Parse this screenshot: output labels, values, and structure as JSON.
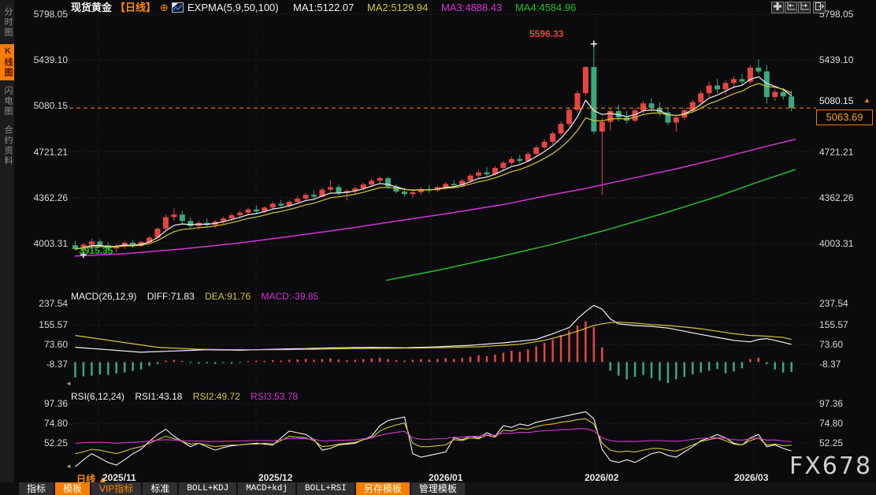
{
  "header": {
    "symbol": "现货黄金",
    "period": "【日线】",
    "plus_icon": "⊕",
    "indicator_label": "EXPMA(5,9,50,100)",
    "ma1": "MA1:5122.07",
    "ma2": "MA2:5129.94",
    "ma3": "MA3:4888.43",
    "ma4": "MA4:4584.96"
  },
  "top_icons": [
    {
      "name": "move-icon"
    },
    {
      "name": "pan-left-icon"
    },
    {
      "name": "pan-right-icon"
    },
    {
      "name": "dock-panel-icon"
    }
  ],
  "sidebar": {
    "items": [
      {
        "label": "分时图",
        "active": false
      },
      {
        "label": "K线图",
        "active": true
      },
      {
        "label": "闪电图",
        "active": false
      },
      {
        "label": "合约资料",
        "active": false
      }
    ]
  },
  "axes": {
    "price": [
      "5798.05",
      "5439.10",
      "5080.15",
      "4721.21",
      "4362.26",
      "4003.31"
    ],
    "macd": [
      "237.54",
      "155.57",
      "73.60",
      "-8.37"
    ],
    "rsi": [
      "97.36",
      "74.80",
      "52.25"
    ]
  },
  "markers": {
    "high_label": "5596.33",
    "low_label": "3915.35",
    "axis_price_label": "5080.15",
    "axis_price_arrow": "▲",
    "last_price": "5063.69"
  },
  "macd_panel": {
    "title": "MACD(26,12,9)",
    "diff_label": "DIFF:71.83",
    "dea_label": "DEA:91.76",
    "macd_label": "MACD:-39.85"
  },
  "rsi_panel": {
    "title": "RSI(6,12,24)",
    "rsi1_label": "RSI1:43.18",
    "rsi2_label": "RSI2:49.72",
    "rsi3_label": "RSI3:53.78"
  },
  "xaxis": {
    "period_label": "日线 ▲",
    "dates": [
      "2025/11",
      "2025/12",
      "2026/01",
      "2026/02",
      "2026/03"
    ]
  },
  "bottom_toolbar": {
    "buttons": [
      {
        "label": "指标",
        "style": "plain"
      },
      {
        "label": "模板",
        "style": "active"
      },
      {
        "label": "VIP指标",
        "style": "vip"
      },
      {
        "label": "标准",
        "style": "plain"
      },
      {
        "label": "BOLL+KDJ",
        "style": "mono"
      },
      {
        "label": "MACD+kdj",
        "style": "mono"
      },
      {
        "label": "BOLL+RSI",
        "style": "mono"
      },
      {
        "label": "另存模板",
        "style": "active"
      },
      {
        "label": "管理模板",
        "style": "plain"
      }
    ]
  },
  "watermark": "FX678",
  "colors": {
    "up": "#e64540",
    "down": "#3aa87c",
    "ma1": "#f2f2f2",
    "ma2": "#d3c72f",
    "ma3": "#d633d6",
    "ma4": "#27bd27",
    "accent": "#f57d00",
    "orange_line": "#ff8a00",
    "grid": "#363636",
    "vgrid": "#2d2d2d",
    "axis_text": "#d8d8d8"
  },
  "chart_data": {
    "type": "candlestick",
    "title": "现货黄金 日线 (spot gold daily)",
    "legend": [
      "MA1(白)",
      "MA2(黄)",
      "MA3(紫)",
      "MA4(绿)"
    ],
    "price_axis_ticks": [
      5798.05,
      5439.1,
      5080.15,
      4721.21,
      4362.26,
      4003.31
    ],
    "high_point": 5596.33,
    "low_point": 3915.35,
    "last": 5063.69,
    "candles": [
      [
        3990,
        4025,
        3950,
        3960
      ],
      [
        3955,
        4010,
        3915.35,
        3995
      ],
      [
        3995,
        4040,
        3970,
        4020
      ],
      [
        4020,
        4035,
        3975,
        3990
      ],
      [
        3990,
        4015,
        3950,
        3965
      ],
      [
        3965,
        4000,
        3935,
        3985
      ],
      [
        3985,
        4020,
        3960,
        4010
      ],
      [
        4010,
        4030,
        3970,
        3985
      ],
      [
        3985,
        4025,
        3975,
        4015
      ],
      [
        4015,
        4060,
        4000,
        4050
      ],
      [
        4050,
        4130,
        4040,
        4120
      ],
      [
        4120,
        4230,
        4110,
        4210
      ],
      [
        4210,
        4280,
        4180,
        4230
      ],
      [
        4230,
        4260,
        4160,
        4180
      ],
      [
        4180,
        4210,
        4120,
        4140
      ],
      [
        4140,
        4180,
        4110,
        4165
      ],
      [
        4165,
        4200,
        4130,
        4150
      ],
      [
        4150,
        4190,
        4125,
        4175
      ],
      [
        4175,
        4215,
        4155,
        4200
      ],
      [
        4200,
        4240,
        4180,
        4225
      ],
      [
        4225,
        4260,
        4200,
        4245
      ],
      [
        4245,
        4285,
        4225,
        4270
      ],
      [
        4270,
        4300,
        4235,
        4255
      ],
      [
        4255,
        4295,
        4240,
        4285
      ],
      [
        4285,
        4330,
        4265,
        4315
      ],
      [
        4315,
        4345,
        4280,
        4300
      ],
      [
        4300,
        4340,
        4285,
        4330
      ],
      [
        4330,
        4370,
        4310,
        4355
      ],
      [
        4355,
        4400,
        4335,
        4385
      ],
      [
        4385,
        4420,
        4350,
        4370
      ],
      [
        4370,
        4440,
        4360,
        4425
      ],
      [
        4425,
        4500,
        4410,
        4445
      ],
      [
        4445,
        4465,
        4380,
        4400
      ],
      [
        4400,
        4430,
        4340,
        4415
      ],
      [
        4415,
        4450,
        4390,
        4435
      ],
      [
        4435,
        4480,
        4420,
        4465
      ],
      [
        4465,
        4510,
        4445,
        4495
      ],
      [
        4495,
        4530,
        4470,
        4515
      ],
      [
        4515,
        4525,
        4430,
        4450
      ],
      [
        4450,
        4470,
        4395,
        4410
      ],
      [
        4410,
        4440,
        4370,
        4390
      ],
      [
        4390,
        4420,
        4360,
        4405
      ],
      [
        4405,
        4445,
        4385,
        4430
      ],
      [
        4430,
        4460,
        4400,
        4420
      ],
      [
        4420,
        4455,
        4405,
        4445
      ],
      [
        4445,
        4485,
        4425,
        4470
      ],
      [
        4470,
        4500,
        4440,
        4460
      ],
      [
        4460,
        4510,
        4445,
        4495
      ],
      [
        4495,
        4550,
        4480,
        4535
      ],
      [
        4535,
        4580,
        4510,
        4560
      ],
      [
        4560,
        4600,
        4530,
        4545
      ],
      [
        4545,
        4610,
        4535,
        4595
      ],
      [
        4595,
        4650,
        4575,
        4635
      ],
      [
        4635,
        4685,
        4615,
        4665
      ],
      [
        4665,
        4700,
        4630,
        4650
      ],
      [
        4650,
        4720,
        4640,
        4705
      ],
      [
        4705,
        4770,
        4690,
        4755
      ],
      [
        4755,
        4820,
        4735,
        4800
      ],
      [
        4800,
        4880,
        4780,
        4865
      ],
      [
        4865,
        4960,
        4845,
        4940
      ],
      [
        4940,
        5070,
        4920,
        5050
      ],
      [
        5050,
        5200,
        5030,
        5180
      ],
      [
        5180,
        5390,
        5160,
        5385
      ],
      [
        5385,
        5596.33,
        4860,
        4880
      ],
      [
        4880,
        4990,
        4385,
        4955
      ],
      [
        4955,
        5060,
        4890,
        5040
      ],
      [
        5040,
        5090,
        4960,
        4990
      ],
      [
        4990,
        5040,
        4940,
        4965
      ],
      [
        4965,
        5060,
        4950,
        5045
      ],
      [
        5045,
        5120,
        5020,
        5100
      ],
      [
        5100,
        5140,
        5040,
        5065
      ],
      [
        5065,
        5110,
        5000,
        5030
      ],
      [
        5030,
        5060,
        4930,
        4950
      ],
      [
        4950,
        5010,
        4880,
        4990
      ],
      [
        4990,
        5060,
        4970,
        5045
      ],
      [
        5045,
        5130,
        5030,
        5110
      ],
      [
        5110,
        5200,
        5090,
        5180
      ],
      [
        5180,
        5270,
        5150,
        5240
      ],
      [
        5240,
        5290,
        5180,
        5210
      ],
      [
        5210,
        5280,
        5170,
        5260
      ],
      [
        5260,
        5310,
        5220,
        5290
      ],
      [
        5290,
        5330,
        5240,
        5270
      ],
      [
        5270,
        5400,
        5250,
        5380
      ],
      [
        5380,
        5445,
        5330,
        5350
      ],
      [
        5350,
        5400,
        5100,
        5150
      ],
      [
        5150,
        5210,
        5120,
        5190
      ],
      [
        5190,
        5220,
        5130,
        5155
      ],
      [
        5155,
        5200,
        5040,
        5063.69
      ]
    ],
    "ma3_points": [
      [
        95,
        3905
      ],
      [
        160,
        3925
      ],
      [
        230,
        3960
      ],
      [
        300,
        4005
      ],
      [
        370,
        4060
      ],
      [
        440,
        4120
      ],
      [
        510,
        4185
      ],
      [
        570,
        4240
      ],
      [
        640,
        4310
      ],
      [
        700,
        4385
      ],
      [
        740,
        4430
      ],
      [
        800,
        4510
      ],
      [
        860,
        4590
      ],
      [
        920,
        4680
      ],
      [
        970,
        4760
      ],
      [
        1010,
        4820
      ]
    ],
    "ma4_points": [
      [
        490,
        3715
      ],
      [
        560,
        3800
      ],
      [
        630,
        3895
      ],
      [
        700,
        3995
      ],
      [
        770,
        4110
      ],
      [
        840,
        4235
      ],
      [
        910,
        4370
      ],
      [
        960,
        4480
      ],
      [
        1010,
        4583
      ]
    ],
    "macd": {
      "params": [
        26,
        12,
        9
      ],
      "diff": [
        60,
        57.5,
        55,
        52.5,
        50,
        47.5,
        45,
        42.5,
        40,
        41.3,
        42.5,
        43.8,
        45,
        46.3,
        47.5,
        48.8,
        50,
        49.5,
        49,
        48.5,
        48,
        49,
        50,
        51,
        52,
        52.8,
        53.5,
        54.3,
        55,
        55.8,
        56.5,
        57.3,
        58,
        58.5,
        59,
        59.5,
        60,
        59.5,
        59,
        58.5,
        58,
        59,
        60,
        61,
        62,
        63.5,
        65,
        66.5,
        68,
        70.5,
        73,
        75.5,
        78,
        81.5,
        85,
        88.5,
        92,
        103.5,
        115,
        127.5,
        140,
        175,
        205,
        230,
        215,
        175,
        155,
        151.5,
        148,
        146.5,
        145,
        141.5,
        138,
        131.5,
        125,
        118.5,
        112,
        106,
        100,
        94,
        88,
        85,
        82,
        92,
        95,
        88,
        80,
        71.83
      ],
      "dea": [
        108,
        103.2,
        98.4,
        93.6,
        88.8,
        84,
        79.2,
        74.4,
        69.6,
        64.8,
        60,
        58.4,
        56.8,
        55.2,
        53.6,
        52,
        51.6,
        51.2,
        50.8,
        50.4,
        50,
        50,
        50,
        50,
        50,
        50.4,
        50.8,
        51.2,
        51.6,
        52,
        52.6,
        53.2,
        53.8,
        54.4,
        55,
        55.2,
        55.4,
        55.6,
        55.8,
        56,
        56.4,
        56.8,
        57.2,
        57.6,
        58,
        58.8,
        59.6,
        60.4,
        61.2,
        62,
        64,
        66,
        68,
        70,
        72,
        77.3,
        82.7,
        88,
        96.5,
        105,
        115,
        125,
        136.5,
        148,
        155,
        160,
        162,
        160,
        158,
        155,
        152,
        150,
        148,
        145,
        142,
        138.5,
        135,
        130,
        125,
        120,
        115,
        111.5,
        108,
        106.5,
        105,
        102.5,
        100,
        91.76
      ],
      "hist": [
        -62,
        -58,
        -55,
        -50,
        -52,
        -46,
        -42,
        -36,
        -30,
        -15,
        -8,
        6,
        9,
        5,
        -4,
        -6,
        -5,
        -7,
        -4,
        -6,
        -3,
        4,
        6,
        5,
        8,
        6,
        9,
        11,
        13,
        9,
        12,
        15,
        10,
        7,
        9,
        12,
        15,
        18,
        12,
        8,
        6,
        9,
        12,
        10,
        13,
        16,
        13,
        17,
        22,
        28,
        24,
        30,
        38,
        46,
        42,
        52,
        64,
        78,
        92,
        110,
        128,
        148,
        165,
        142,
        60,
        -35,
        -55,
        -70,
        -60,
        -52,
        -65,
        -75,
        -85,
        -70,
        -60,
        -50,
        -42,
        -35,
        -28,
        -45,
        -38,
        -25,
        12,
        18,
        -8,
        -30,
        -42,
        -39.85
      ]
    },
    "rsi": {
      "params": [
        6,
        12,
        24
      ],
      "rsi1": [
        25,
        33,
        40,
        35,
        30,
        27,
        33,
        40,
        45,
        54,
        62,
        68,
        60,
        54,
        48,
        52,
        48,
        44,
        47,
        49,
        50,
        51,
        52,
        51,
        50,
        58,
        66,
        64,
        62,
        56,
        44,
        46,
        50,
        51,
        52,
        56,
        60,
        72,
        78,
        80,
        82,
        40,
        36,
        38,
        40,
        42,
        58,
        56,
        60,
        58,
        64,
        60,
        72,
        70,
        74,
        72,
        76,
        78,
        80,
        82,
        84,
        86,
        88,
        80,
        45,
        32,
        30,
        33,
        30,
        35,
        40,
        42,
        38,
        36,
        42,
        48,
        55,
        58,
        62,
        58,
        52,
        50,
        58,
        62,
        48,
        50,
        46,
        43.18
      ],
      "rsi2": [
        40,
        42,
        45,
        44,
        42,
        40,
        43,
        46,
        48,
        52,
        56,
        60,
        57,
        54,
        51,
        52,
        50,
        48,
        49,
        50,
        50,
        51,
        51,
        52,
        51,
        55,
        60,
        59,
        58,
        55,
        48,
        49,
        51,
        52,
        53,
        56,
        58,
        66,
        70,
        73,
        75,
        52,
        48,
        48,
        49,
        50,
        56,
        55,
        58,
        57,
        61,
        59,
        67,
        66,
        69,
        68,
        71,
        73,
        74,
        76,
        77,
        79,
        80,
        74,
        52,
        44,
        42,
        43,
        42,
        44,
        46,
        46,
        44,
        43,
        46,
        50,
        54,
        56,
        58,
        55,
        51,
        50,
        55,
        58,
        50,
        51,
        49,
        49.72
      ],
      "rsi3": [
        52,
        52.5,
        53,
        53,
        52.5,
        52,
        52.5,
        53,
        53.5,
        54.5,
        55.5,
        56,
        55.5,
        55,
        54.5,
        54.5,
        54,
        54,
        54.2,
        54.5,
        54.5,
        54.8,
        55,
        55,
        54.8,
        56,
        57.5,
        57.5,
        57,
        56.5,
        54.5,
        54.8,
        55.2,
        55.5,
        55.8,
        57,
        58,
        61,
        63,
        64.5,
        65.5,
        58,
        56.5,
        56.5,
        57,
        57.2,
        59,
        58.8,
        60,
        59.8,
        61.5,
        61,
        63.5,
        63.2,
        64.5,
        64.2,
        65.5,
        66.2,
        66.8,
        67.4,
        67.8,
        68.4,
        68.8,
        66,
        58,
        55,
        54,
        54.2,
        54,
        54.5,
        55,
        55,
        54.5,
        54.2,
        55,
        56.5,
        57.5,
        58,
        58.5,
        57.5,
        56,
        55.5,
        57,
        58,
        55.5,
        55.8,
        54.5,
        53.78
      ]
    },
    "x_gridlines": [
      125,
      325,
      547,
      757,
      957
    ],
    "date_label_x": [
      130,
      328,
      544,
      742,
      932
    ]
  }
}
